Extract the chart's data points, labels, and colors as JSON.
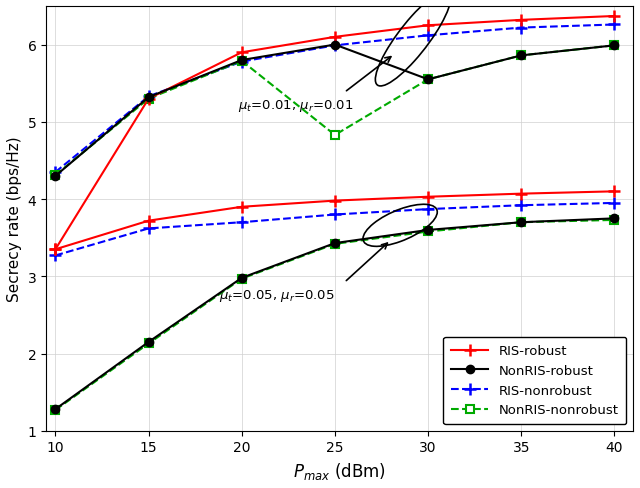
{
  "x": [
    10,
    15,
    20,
    25,
    30,
    35,
    40
  ],
  "ris_robust_mu001": [
    3.35,
    5.3,
    5.9,
    6.1,
    6.25,
    6.32,
    6.37
  ],
  "nonris_robust_mu001": [
    4.3,
    5.32,
    5.8,
    6.0,
    5.55,
    5.86,
    5.99
  ],
  "ris_nonrobust_mu001": [
    4.35,
    5.33,
    5.78,
    5.99,
    6.12,
    6.22,
    6.26
  ],
  "nonris_nonrobust_mu001": [
    4.31,
    5.3,
    5.79,
    4.83,
    5.55,
    5.86,
    5.99
  ],
  "ris_robust_mu005": [
    3.35,
    3.72,
    3.9,
    3.98,
    4.03,
    4.07,
    4.1
  ],
  "nonris_robust_mu005": [
    1.28,
    2.15,
    2.98,
    3.43,
    3.6,
    3.7,
    3.75
  ],
  "ris_nonrobust_mu005": [
    3.27,
    3.62,
    3.7,
    3.8,
    3.87,
    3.92,
    3.95
  ],
  "nonris_nonrobust_mu005": [
    1.27,
    2.13,
    2.97,
    3.42,
    3.58,
    3.7,
    3.73
  ],
  "ylabel": "Secrecy rate (bps/Hz)",
  "xlabel": "$P_{max}$ (dBm)",
  "ylim": [
    1.0,
    6.5
  ],
  "yticks": [
    1,
    2,
    3,
    4,
    5,
    6
  ],
  "xticks": [
    10,
    15,
    20,
    25,
    30,
    35,
    40
  ],
  "color_red": "#FF0000",
  "color_black": "#000000",
  "color_blue": "#0000FF",
  "color_green": "#00AA00",
  "label_ris_robust": "RIS-robust",
  "label_nonris_robust": "NonRIS-robust",
  "label_ris_nonrobust": "RIS-nonrobust",
  "label_nonris_nonrobust": "NonRIS-nonrobust"
}
